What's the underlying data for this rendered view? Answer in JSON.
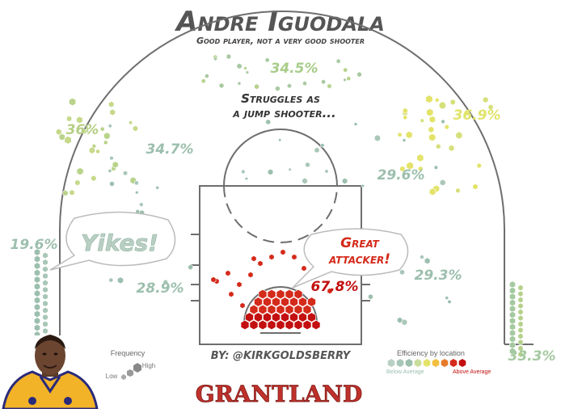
{
  "header": {
    "title": "Andre Iguodala",
    "subtitle": "Good player, not a very good shooter"
  },
  "annotations": {
    "jump_line1": "Struggles as",
    "jump_line2": "a jump shooter...",
    "yikes": "Yikes!",
    "great_line1": "Great",
    "great_line2": "attacker!",
    "byline": "BY: @KIRKGOLDSBERRY",
    "brand": "GRANTLAND"
  },
  "legend": {
    "frequency_title": "Frequency",
    "frequency_low": "Low",
    "frequency_high": "High",
    "efficiency_title": "Efficiency by location",
    "efficiency_below": "Below Average",
    "efficiency_above": "Above Average",
    "colors": [
      "#b9d0c4",
      "#a9c7b8",
      "#9cbfae",
      "#c9dd9a",
      "#e3e36a",
      "#f2c040",
      "#e67a2a",
      "#d42a1a",
      "#c30f0f"
    ]
  },
  "chart_data": {
    "type": "heatmap",
    "title": "Andre Iguodala",
    "subtitle": "Good player, not a very good shooter",
    "zones": [
      {
        "zone": "left corner three",
        "fg_pct": 19.6,
        "label": "19.6%",
        "efficiency": "below",
        "color": "#9cbfae"
      },
      {
        "zone": "left wing three",
        "fg_pct": 36.0,
        "label": "36%",
        "efficiency": "slightly-below",
        "color": "#b5cf84"
      },
      {
        "zone": "top of key three",
        "fg_pct": 34.5,
        "label": "34.5%",
        "efficiency": "slightly-below",
        "color": "#a8cd8a"
      },
      {
        "zone": "right wing three",
        "fg_pct": 36.9,
        "label": "36.9%",
        "efficiency": "average",
        "color": "#e0e36a"
      },
      {
        "zone": "right corner three",
        "fg_pct": 33.3,
        "label": "33.3%",
        "efficiency": "slightly-below",
        "color": "#a4c9a0"
      },
      {
        "zone": "left elbow midrange",
        "fg_pct": 34.7,
        "label": "34.7%",
        "efficiency": "below",
        "color": "#9cbfae"
      },
      {
        "zone": "right elbow midrange",
        "fg_pct": 29.6,
        "label": "29.6%",
        "efficiency": "below",
        "color": "#9cbfae"
      },
      {
        "zone": "left baseline midrange",
        "fg_pct": 28.9,
        "label": "28.9%",
        "efficiency": "below",
        "color": "#9cbfae"
      },
      {
        "zone": "right baseline midrange",
        "fg_pct": 29.3,
        "label": "29.3%",
        "efficiency": "below",
        "color": "#9cbfae"
      },
      {
        "zone": "restricted area",
        "fg_pct": 67.8,
        "label": "67.8%",
        "efficiency": "above",
        "color": "#d42a1a"
      }
    ]
  }
}
